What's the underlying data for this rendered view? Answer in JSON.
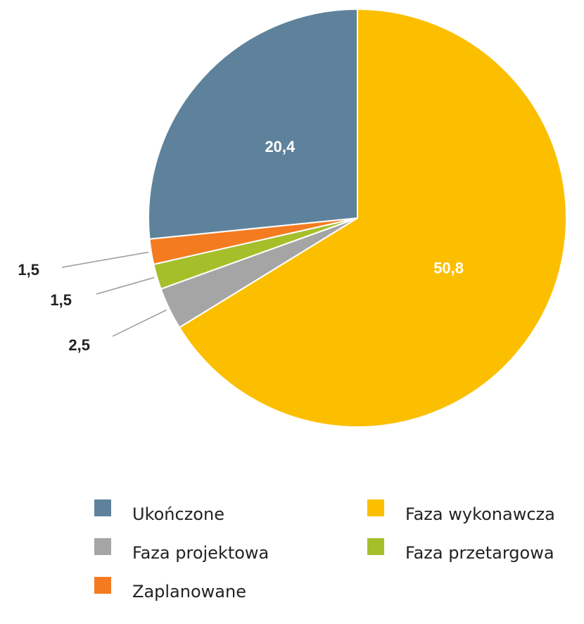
{
  "chart_data": {
    "type": "pie",
    "categories": [
      "Ukończone",
      "Faza wykonawcza",
      "Faza projektowa",
      "Faza przetargowa",
      "Zaplanowane"
    ],
    "values": [
      20.4,
      50.8,
      2.5,
      1.5,
      1.5
    ],
    "value_labels": [
      "20,4",
      "50,8",
      "2,5",
      "1,5",
      "1,5"
    ],
    "colors": [
      "#5f829c",
      "#fbbf00",
      "#a5a5a5",
      "#a5bf2a",
      "#f47b20"
    ]
  }
}
